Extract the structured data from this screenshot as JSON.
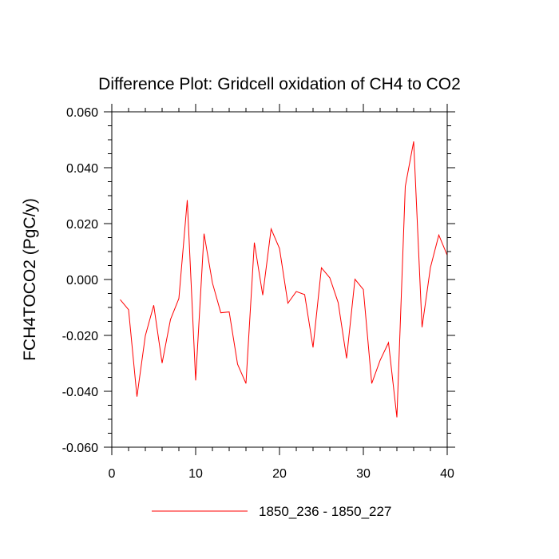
{
  "chart_data": {
    "type": "line",
    "title": "Difference Plot: Gridcell oxidation of CH4 to CO2",
    "xlabel": "",
    "ylabel": "FCH4TOCO2  (PgC/y)",
    "xlim": [
      0,
      40
    ],
    "ylim": [
      -0.06,
      0.06
    ],
    "x_ticks": [
      0,
      10,
      20,
      30,
      40
    ],
    "x_tick_labels": [
      "0",
      "10",
      "20",
      "30",
      "40"
    ],
    "y_ticks": [
      -0.06,
      -0.04,
      -0.02,
      0.0,
      0.02,
      0.04,
      0.06
    ],
    "y_tick_labels": [
      "-0.060",
      "-0.040",
      "-0.020",
      "0.000",
      "0.020",
      "0.040",
      "0.060"
    ],
    "grid": false,
    "legend_position": "bottom-center",
    "series": [
      {
        "name": "1850_236 - 1850_227",
        "color": "#ff0000",
        "x": [
          1,
          2,
          3,
          4,
          5,
          6,
          7,
          8,
          9,
          10,
          11,
          12,
          13,
          14,
          15,
          16,
          17,
          18,
          19,
          20,
          21,
          22,
          23,
          24,
          25,
          26,
          27,
          28,
          29,
          30,
          31,
          32,
          33,
          34,
          35,
          36,
          37,
          38,
          39,
          40
        ],
        "values": [
          -0.0072,
          -0.0108,
          -0.0419,
          -0.0201,
          -0.0092,
          -0.0299,
          -0.0143,
          -0.0068,
          0.0284,
          -0.0361,
          0.0164,
          -0.0012,
          -0.0119,
          -0.0116,
          -0.0303,
          -0.0372,
          0.0132,
          -0.0056,
          0.0181,
          0.0111,
          -0.0085,
          -0.0043,
          -0.0054,
          -0.0243,
          0.0042,
          0.0006,
          -0.0083,
          -0.0282,
          0.0001,
          -0.0036,
          -0.0372,
          -0.0289,
          -0.0226,
          -0.0493,
          0.0333,
          0.0494,
          -0.0171,
          0.0043,
          0.0159,
          0.0087
        ]
      }
    ]
  }
}
